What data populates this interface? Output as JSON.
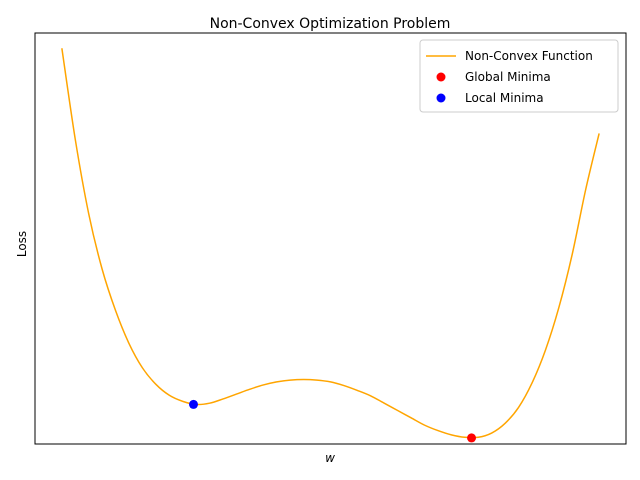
{
  "chart_data": {
    "type": "line",
    "title": "Non-Convex Optimization Problem",
    "xlabel": "w",
    "ylabel": "Loss",
    "xlim": [
      -2.2,
      2.2
    ],
    "ylim": [
      -0.9,
      5.85
    ],
    "grid": false,
    "x_ticks_visible": false,
    "y_ticks_visible": false,
    "legend_position": "top-right",
    "series": [
      {
        "name": "Non-Convex Function",
        "kind": "line",
        "color": "#ffa500",
        "x": [
          -2.0,
          -1.9,
          -1.8,
          -1.7,
          -1.6,
          -1.5,
          -1.4,
          -1.3,
          -1.2,
          -1.1,
          -1.0,
          -0.9,
          -0.8,
          -0.7,
          -0.6,
          -0.5,
          -0.4,
          -0.3,
          -0.2,
          -0.1,
          0.0,
          0.1,
          0.2,
          0.3,
          0.4,
          0.5,
          0.6,
          0.7,
          0.8,
          0.9,
          1.0,
          1.1,
          1.2,
          1.3,
          1.4,
          1.5,
          1.6,
          1.7,
          1.8,
          1.9,
          2.0
        ],
        "y": [
          5.6,
          4.1,
          2.88,
          1.97,
          1.29,
          0.75,
          0.35,
          0.08,
          -0.1,
          -0.2,
          -0.25,
          -0.23,
          -0.16,
          -0.08,
          0.0,
          0.07,
          0.12,
          0.15,
          0.16,
          0.15,
          0.12,
          0.06,
          -0.02,
          -0.11,
          -0.23,
          -0.35,
          -0.47,
          -0.59,
          -0.68,
          -0.75,
          -0.79,
          -0.79,
          -0.72,
          -0.56,
          -0.3,
          0.1,
          0.64,
          1.34,
          2.22,
          3.28,
          4.2
        ]
      },
      {
        "name": "Global Minima",
        "kind": "scatter",
        "color": "#ff0000",
        "x": [
          1.05
        ],
        "y": [
          -0.8
        ]
      },
      {
        "name": "Local Minima",
        "kind": "scatter",
        "color": "#0000ff",
        "x": [
          -1.02
        ],
        "y": [
          -0.25
        ]
      }
    ]
  }
}
